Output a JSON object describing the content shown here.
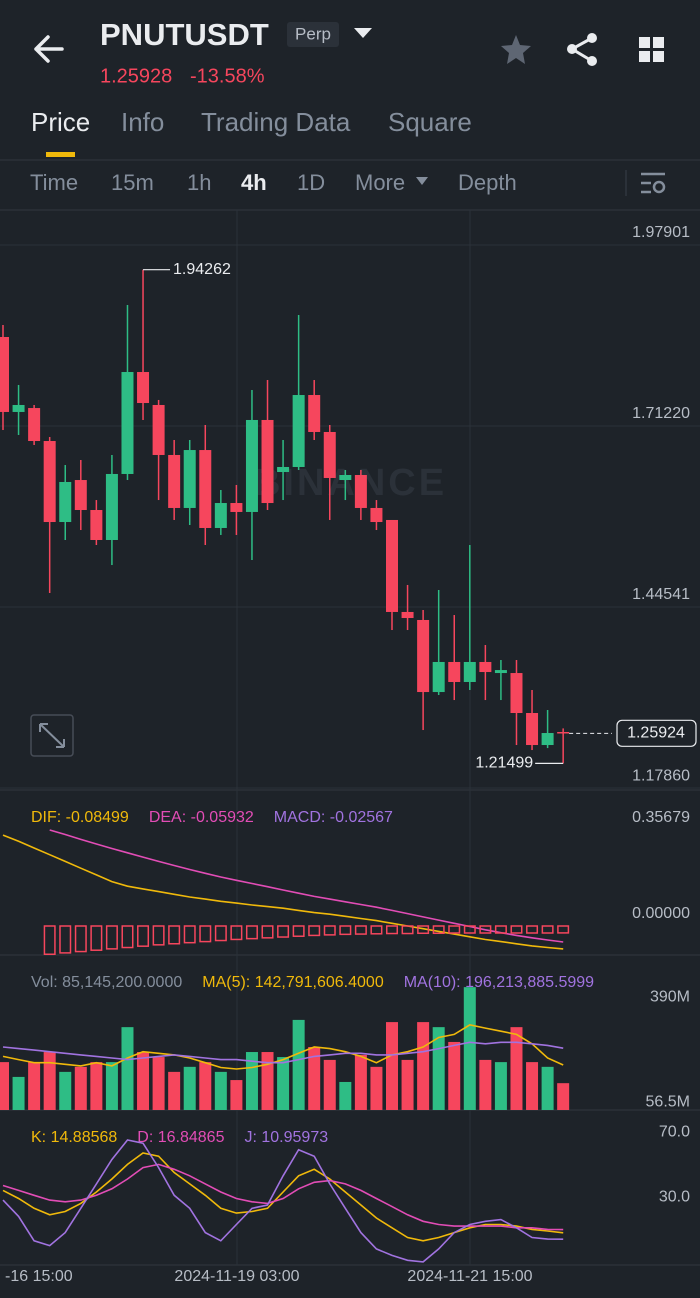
{
  "header": {
    "symbol": "PNUTUSDT",
    "badge": "Perp",
    "price": "1.25928",
    "change": "-13.58%"
  },
  "tabs": [
    "Price",
    "Info",
    "Trading Data",
    "Square"
  ],
  "intervals": [
    "Time",
    "15m",
    "1h",
    "4h",
    "1D",
    "More",
    "Depth"
  ],
  "watermark": "BINANCE",
  "x_axis_labels": [
    "-16 15:00",
    "2024-11-19 03:00",
    "2024-11-21 15:00"
  ],
  "chart_data": [
    {
      "type": "candlestick",
      "up_color": "#2ebd85",
      "down_color": "#f6465d",
      "open": [
        1.8434,
        1.7329,
        1.7387,
        1.6901,
        1.5707,
        1.6326,
        1.5884,
        1.5442,
        1.6415,
        1.7918,
        1.7432,
        1.6695,
        1.5914,
        1.6768,
        1.5619,
        1.5987,
        1.5855,
        1.7211,
        1.6444,
        1.6518,
        1.7579,
        1.7034,
        1.6326,
        1.64,
        1.5914,
        1.5737,
        1.4381,
        1.4263,
        1.3201,
        1.3644,
        1.3349,
        1.3644,
        1.3481,
        1.3481,
        1.2892,
        1.242,
        1.2612
      ],
      "high": [
        1.8611,
        1.7727,
        1.7432,
        1.696,
        1.6547,
        1.6621,
        1.6031,
        1.6695,
        1.8906,
        1.94262,
        1.7506,
        1.6916,
        1.6916,
        1.7137,
        1.6179,
        1.6253,
        1.7653,
        1.78,
        1.6916,
        1.8758,
        1.78,
        1.7137,
        1.6474,
        1.6474,
        1.6031,
        1.5737,
        1.4779,
        1.441,
        1.4705,
        1.4336,
        1.5368,
        1.3894,
        1.3673,
        1.3673,
        1.3231,
        1.2936,
        1.2665
      ],
      "low": [
        1.7063,
        1.699,
        1.6842,
        1.4661,
        1.5442,
        1.5589,
        1.5368,
        1.5073,
        1.6326,
        1.7211,
        1.6031,
        1.5737,
        1.5663,
        1.5368,
        1.5516,
        1.5516,
        1.5147,
        1.5884,
        1.6031,
        1.6474,
        1.6916,
        1.5737,
        1.6031,
        1.5737,
        1.5589,
        1.4115,
        1.4115,
        1.2641,
        1.3157,
        1.3083,
        1.3231,
        1.3083,
        1.3083,
        1.242,
        1.2346,
        1.2375,
        1.21499
      ],
      "close": [
        1.7329,
        1.7432,
        1.6901,
        1.5707,
        1.6297,
        1.5884,
        1.5442,
        1.6415,
        1.7918,
        1.7461,
        1.6695,
        1.5914,
        1.6768,
        1.5619,
        1.5987,
        1.5855,
        1.7211,
        1.5987,
        1.6518,
        1.7579,
        1.7034,
        1.6356,
        1.64,
        1.5914,
        1.5707,
        1.4381,
        1.4292,
        1.3201,
        1.3644,
        1.3349,
        1.3644,
        1.3496,
        1.3525,
        1.2892,
        1.242,
        1.2597,
        1.25924
      ],
      "ylim": [
        1.1757,
        2.0306
      ],
      "yticks": [
        1.97901,
        {
          "value": 1.7122,
          "label": "1.71220"
        },
        1.44541,
        {
          "value": 1.1786,
          "label": "1.17860"
        }
      ],
      "high_label": 1.94262,
      "low_label": 1.21499,
      "last_price": 1.25924,
      "grid": true
    },
    {
      "type": "combo",
      "ylim": [
        -0.1078,
        0.5056
      ],
      "yticks": [
        0.35679,
        {
          "value": 0,
          "label": "0.00000"
        }
      ],
      "series": [
        {
          "name": "DIF: -0.08499",
          "type": "line",
          "color": "#f0b90b",
          "values": [
            0.338,
            0.315,
            0.29,
            0.265,
            0.24,
            0.215,
            0.19,
            0.165,
            0.148,
            0.138,
            0.128,
            0.118,
            0.108,
            0.1,
            0.092,
            0.085,
            0.078,
            0.072,
            0.066,
            0.058,
            0.05,
            0.044,
            0.036,
            0.028,
            0.02,
            0.01,
            0.0,
            -0.01,
            -0.02,
            -0.03,
            -0.04,
            -0.05,
            -0.058,
            -0.066,
            -0.074,
            -0.08,
            -0.08499
          ]
        },
        {
          "name": "DEA: -0.05932",
          "type": "line",
          "color": "#e24db6",
          "values": [
            null,
            null,
            null,
            0.357,
            0.34,
            0.322,
            0.305,
            0.288,
            0.272,
            0.256,
            0.24,
            0.225,
            0.21,
            0.196,
            0.182,
            0.17,
            0.158,
            0.146,
            0.134,
            0.122,
            0.11,
            0.1,
            0.09,
            0.08,
            0.07,
            0.058,
            0.046,
            0.034,
            0.022,
            0.01,
            -0.002,
            -0.014,
            -0.025,
            -0.035,
            -0.044,
            -0.052,
            -0.05932
          ]
        },
        {
          "name": "MACD: -0.02567",
          "type": "bar",
          "color": "#f6465d",
          "hollow": true,
          "values": [
            null,
            null,
            null,
            -0.105,
            -0.1,
            -0.095,
            -0.09,
            -0.085,
            -0.08,
            -0.075,
            -0.07,
            -0.066,
            -0.062,
            -0.058,
            -0.054,
            -0.05,
            -0.047,
            -0.044,
            -0.041,
            -0.038,
            -0.035,
            -0.033,
            -0.031,
            -0.03,
            -0.029,
            -0.028,
            -0.028,
            -0.027,
            -0.027,
            -0.026,
            -0.026,
            -0.026,
            -0.026,
            -0.026,
            -0.026,
            -0.026,
            -0.02567
          ]
        }
      ],
      "legend_colors": [
        "#f0b90b",
        "#e24db6",
        "#a173e0"
      ]
    },
    {
      "type": "combo",
      "ylim": [
        0,
        492
      ],
      "yticks": [
        {
          "value": 390,
          "label": "390M"
        },
        {
          "value": 56.5,
          "label": "56.5M"
        }
      ],
      "series": [
        {
          "name": "Vol: 85,145,200.0000",
          "type": "bar",
          "color": "#848e9c",
          "direction_from": 0,
          "values": [
            152,
            105,
            152,
            184,
            121,
            137,
            152,
            152,
            263,
            184,
            168,
            121,
            137,
            152,
            121,
            95,
            184,
            184,
            168,
            286,
            200,
            159,
            89,
            175,
            137,
            279,
            159,
            279,
            263,
            216,
            390,
            159,
            152,
            263,
            152,
            137,
            85.1452
          ]
        },
        {
          "name": "MA(5): 142,791,606.4000",
          "type": "line",
          "color": "#f0b90b",
          "values": [
            170,
            160,
            150,
            150,
            145,
            140,
            150,
            140,
            165,
            185,
            180,
            175,
            165,
            150,
            135,
            130,
            135,
            145,
            160,
            180,
            200,
            195,
            185,
            170,
            150,
            175,
            185,
            200,
            230,
            240,
            270,
            260,
            250,
            240,
            210,
            165,
            142.79
          ]
        },
        {
          "name": "MA(10): 196,213,885.5999",
          "type": "line",
          "color": "#a173e0",
          "values": [
            200,
            195,
            190,
            185,
            180,
            175,
            170,
            165,
            160,
            165,
            170,
            175,
            170,
            165,
            160,
            160,
            155,
            150,
            150,
            160,
            170,
            175,
            180,
            180,
            175,
            175,
            180,
            185,
            195,
            205,
            215,
            210,
            215,
            215,
            210,
            205,
            196.21
          ]
        }
      ]
    },
    {
      "type": "combo",
      "ylim": [
        -4.92,
        90.46
      ],
      "yticks": [
        {
          "value": 70,
          "label": "70.0"
        },
        {
          "value": 30,
          "label": "30.0"
        }
      ],
      "series": [
        {
          "name": "K: 14.88568",
          "type": "line",
          "color": "#f0b90b",
          "values": [
            41,
            36,
            30,
            26,
            28,
            33,
            40,
            48,
            57,
            64,
            62,
            52,
            45,
            38,
            30,
            27,
            28,
            30,
            40,
            50,
            54,
            48,
            40,
            32,
            24,
            18,
            12,
            10,
            12,
            15,
            18,
            20,
            20,
            19,
            17,
            16,
            14.88568
          ]
        },
        {
          "name": "D: 16.84865",
          "type": "line",
          "color": "#e24db6",
          "values": [
            44,
            41,
            38,
            35,
            34,
            35,
            38,
            42,
            48,
            55,
            57,
            54,
            50,
            45,
            40,
            36,
            34,
            33,
            36,
            42,
            46,
            47,
            45,
            41,
            36,
            31,
            26,
            22,
            20,
            19,
            19,
            19,
            19,
            18,
            18,
            17,
            16.84865
          ]
        },
        {
          "name": "J: 10.95973",
          "type": "line",
          "color": "#a173e0",
          "values": [
            35,
            25,
            10,
            7,
            15,
            30,
            45,
            60,
            72,
            70,
            55,
            38,
            30,
            15,
            10,
            20,
            30,
            32,
            50,
            66,
            62,
            45,
            30,
            15,
            5,
            1,
            -2,
            -3,
            5,
            15,
            20,
            22,
            23,
            18,
            12,
            11,
            10.95973
          ]
        }
      ]
    }
  ]
}
